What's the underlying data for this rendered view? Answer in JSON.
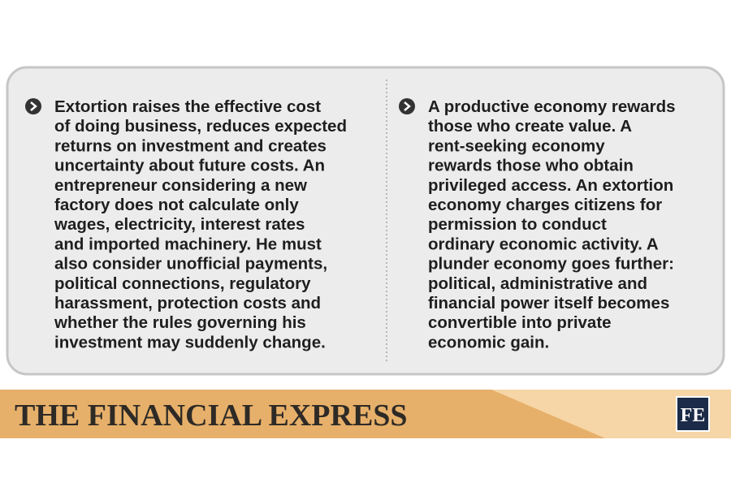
{
  "left_column": {
    "lines": [
      "Extortion raises the effective cost",
      "of doing business, reduces expected",
      "returns on investment and creates",
      "uncertainty about future costs. An",
      "entrepreneur considering a new",
      "factory does not calculate only",
      "wages, electricity, interest rates",
      "and imported machinery. He must",
      "also consider unofficial payments,",
      "political connections, regulatory",
      "harassment, protection costs and",
      "whether the rules governing his",
      "investment may suddenly change."
    ]
  },
  "right_column": {
    "lines": [
      "A productive economy rewards",
      "those who create value. A",
      "rent-seeking economy",
      "rewards those who obtain",
      "privileged access. An extortion",
      "economy charges citizens for",
      "permission to conduct",
      "ordinary economic activity. A",
      "plunder economy goes further:",
      "political, administrative and",
      "financial power itself becomes",
      "convertible into private",
      "economic gain."
    ]
  },
  "footer": {
    "brand": "THE FINANCIAL EXPRESS",
    "logo": "FE"
  }
}
